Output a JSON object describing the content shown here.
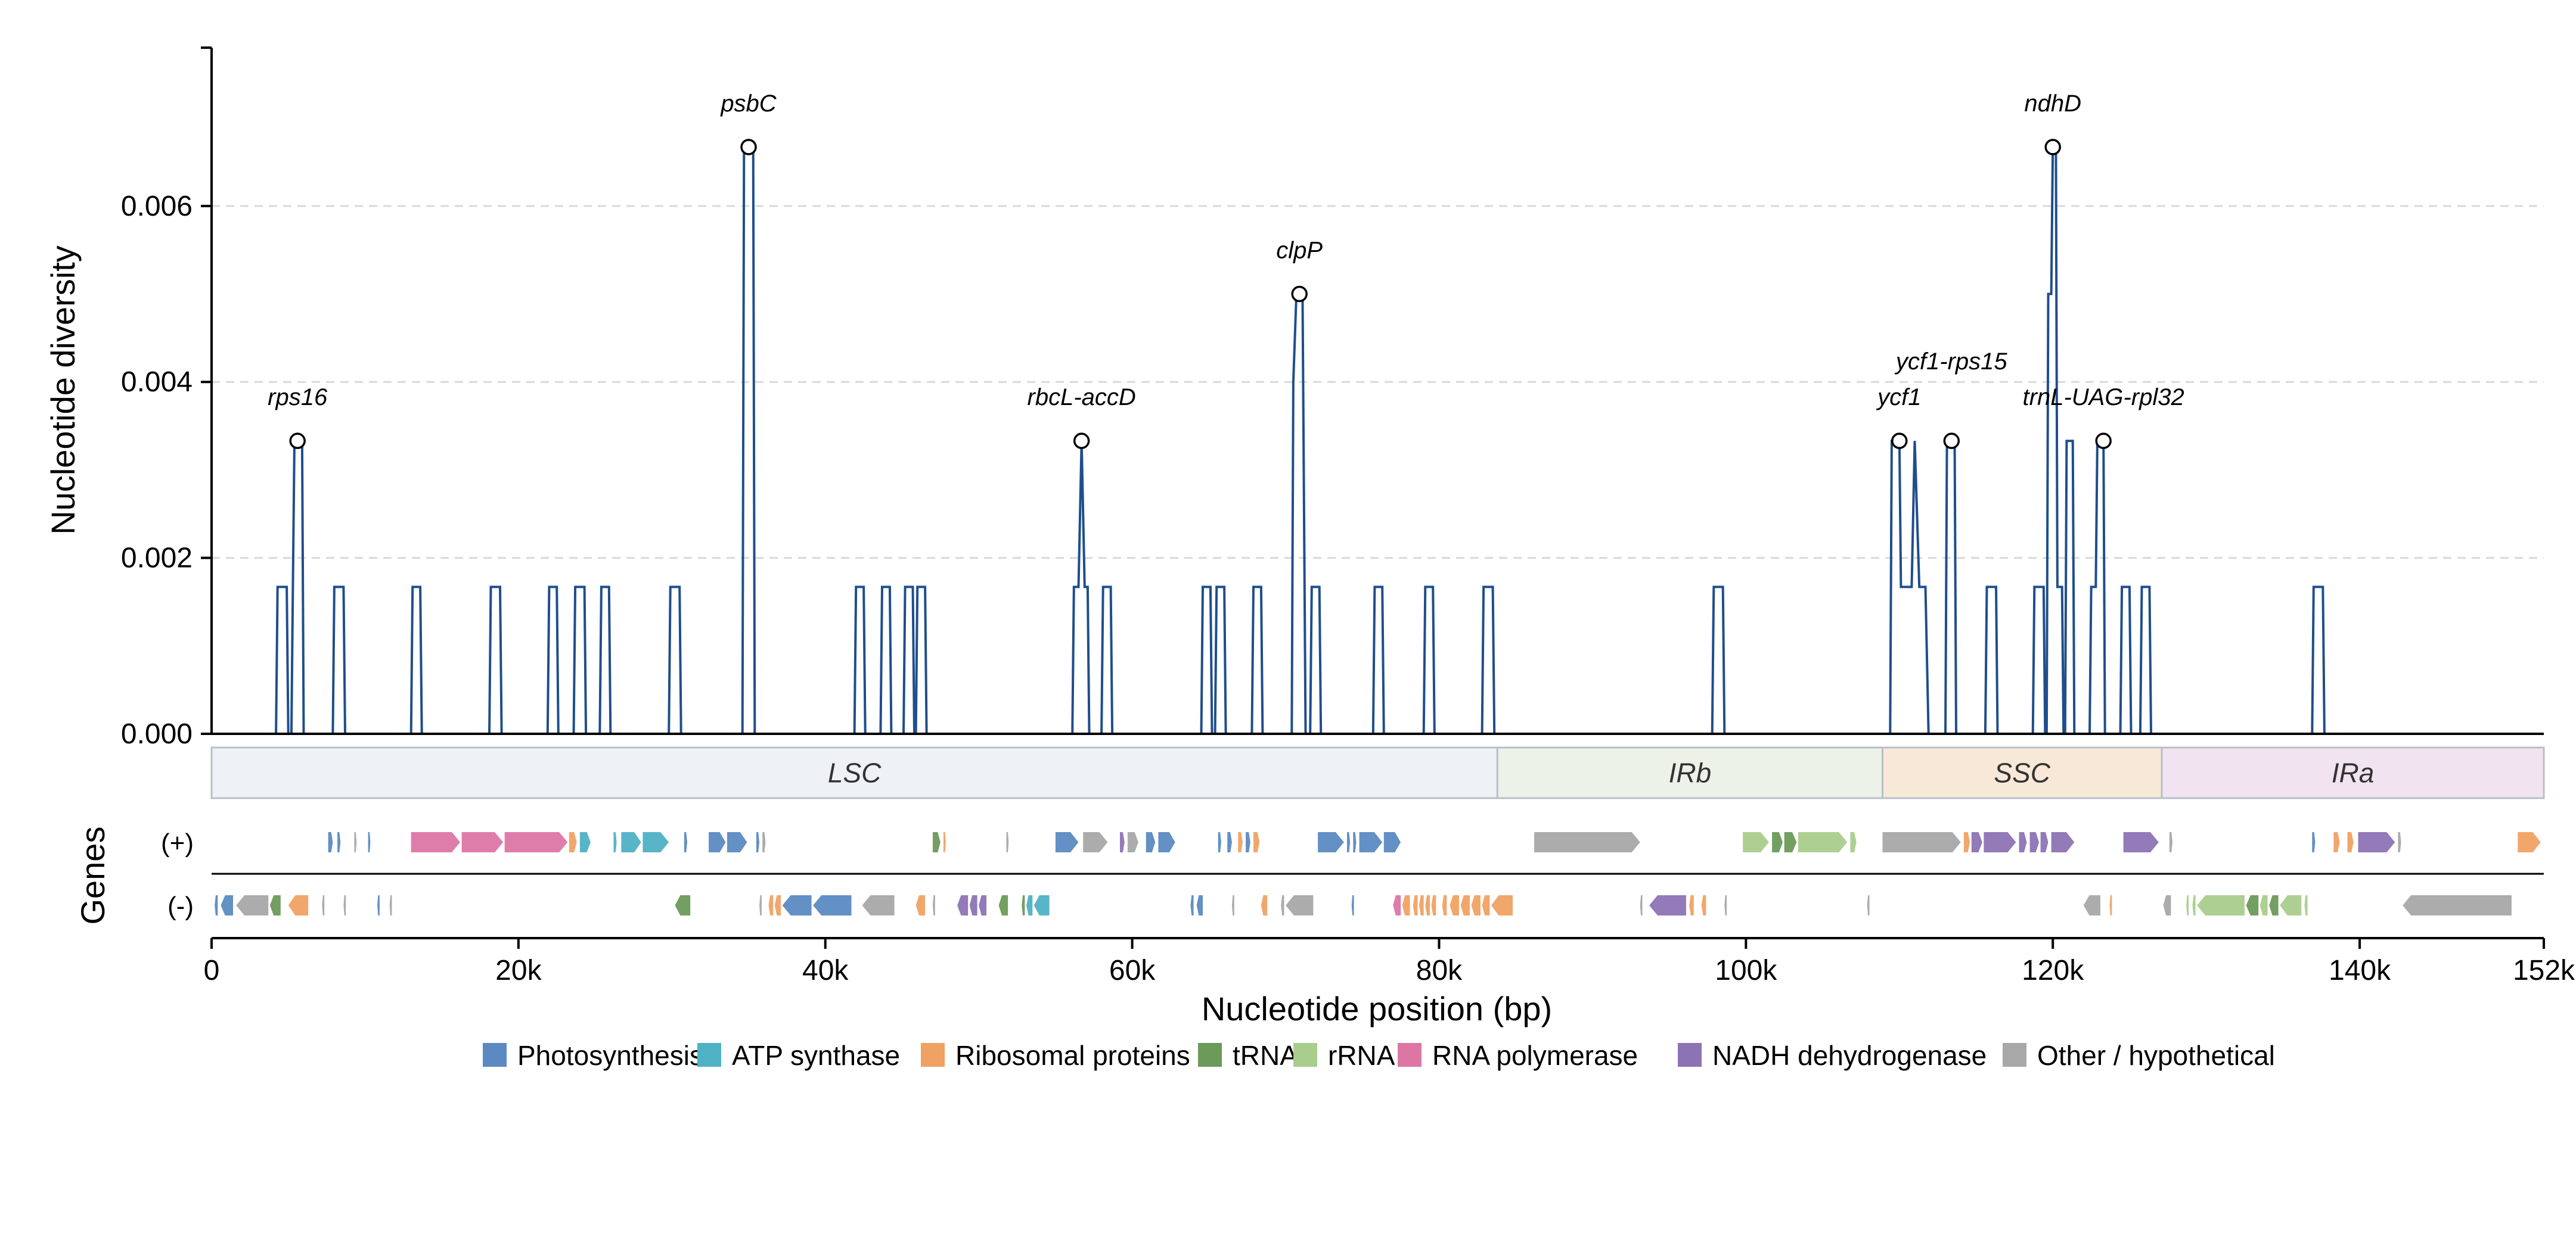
{
  "chart_data": {
    "type": "line",
    "ylabel": "Nucleotide diversity",
    "xlabel": "Nucleotide position (bp)",
    "genes_label": "Genes",
    "ylim": [
      0,
      0.0078
    ],
    "xlim": [
      0,
      152000
    ],
    "y_ticks": [
      0,
      0.002,
      0.004,
      0.006
    ],
    "y_tick_labels": [
      "0.000",
      "0.002",
      "0.004",
      "0.006"
    ],
    "x_ticks": [
      0,
      20000,
      40000,
      60000,
      80000,
      100000,
      120000,
      140000,
      152000
    ],
    "x_tick_labels": [
      "0",
      "20k",
      "40k",
      "60k",
      "80k",
      "100k",
      "120k",
      "140k",
      "152k"
    ],
    "grid": "horizontal dashed",
    "line_color": "#1f4e8c",
    "series_points": [
      [
        4200,
        0
      ],
      [
        4300,
        0.00167
      ],
      [
        4900,
        0.00167
      ],
      [
        5000,
        0
      ],
      [
        5200,
        0
      ],
      [
        5300,
        0.00167
      ],
      [
        5400,
        0.00333
      ],
      [
        5900,
        0.00333
      ],
      [
        6000,
        0
      ],
      [
        7900,
        0
      ],
      [
        8000,
        0.00167
      ],
      [
        8600,
        0.00167
      ],
      [
        8700,
        0
      ],
      [
        13000,
        0
      ],
      [
        13100,
        0.00167
      ],
      [
        13600,
        0.00167
      ],
      [
        13700,
        0
      ],
      [
        18100,
        0
      ],
      [
        18200,
        0.00167
      ],
      [
        18800,
        0.00167
      ],
      [
        18900,
        0
      ],
      [
        21900,
        0
      ],
      [
        22000,
        0.00167
      ],
      [
        22500,
        0.00167
      ],
      [
        22600,
        0
      ],
      [
        23600,
        0
      ],
      [
        23700,
        0.00167
      ],
      [
        24300,
        0.00167
      ],
      [
        24400,
        0
      ],
      [
        25300,
        0
      ],
      [
        25400,
        0.00167
      ],
      [
        25900,
        0.00167
      ],
      [
        26000,
        0
      ],
      [
        29800,
        0
      ],
      [
        29900,
        0.00167
      ],
      [
        30500,
        0.00167
      ],
      [
        30600,
        0
      ],
      [
        34600,
        0
      ],
      [
        34700,
        0.00667
      ],
      [
        35300,
        0.00667
      ],
      [
        35400,
        0
      ],
      [
        41900,
        0
      ],
      [
        42000,
        0.00167
      ],
      [
        42500,
        0.00167
      ],
      [
        42600,
        0
      ],
      [
        43600,
        0
      ],
      [
        43700,
        0.00167
      ],
      [
        44200,
        0.00167
      ],
      [
        44300,
        0
      ],
      [
        45100,
        0
      ],
      [
        45200,
        0.00167
      ],
      [
        45700,
        0.00167
      ],
      [
        45800,
        0
      ],
      [
        45900,
        0
      ],
      [
        46000,
        0.00167
      ],
      [
        46500,
        0.00167
      ],
      [
        46600,
        0
      ],
      [
        56100,
        0
      ],
      [
        56200,
        0.00167
      ],
      [
        56500,
        0.00167
      ],
      [
        56700,
        0.00333
      ],
      [
        56900,
        0.00167
      ],
      [
        57100,
        0.00167
      ],
      [
        57200,
        0
      ],
      [
        58000,
        0
      ],
      [
        58100,
        0.00167
      ],
      [
        58600,
        0.00167
      ],
      [
        58700,
        0
      ],
      [
        64500,
        0
      ],
      [
        64600,
        0.00167
      ],
      [
        65100,
        0.00167
      ],
      [
        65200,
        0
      ],
      [
        65400,
        0
      ],
      [
        65500,
        0.00167
      ],
      [
        66000,
        0.00167
      ],
      [
        66100,
        0
      ],
      [
        67800,
        0
      ],
      [
        67900,
        0.00167
      ],
      [
        68400,
        0.00167
      ],
      [
        68500,
        0
      ],
      [
        70400,
        0
      ],
      [
        70500,
        0.004
      ],
      [
        70700,
        0.005
      ],
      [
        71100,
        0.005
      ],
      [
        71300,
        0
      ],
      [
        71600,
        0
      ],
      [
        71700,
        0.00167
      ],
      [
        72200,
        0.00167
      ],
      [
        72300,
        0
      ],
      [
        75700,
        0
      ],
      [
        75800,
        0.00167
      ],
      [
        76300,
        0.00167
      ],
      [
        76400,
        0
      ],
      [
        79000,
        0
      ],
      [
        79100,
        0.00167
      ],
      [
        79600,
        0.00167
      ],
      [
        79700,
        0
      ],
      [
        82800,
        0
      ],
      [
        82900,
        0.00167
      ],
      [
        83500,
        0.00167
      ],
      [
        83600,
        0
      ],
      [
        97800,
        0
      ],
      [
        97900,
        0.00167
      ],
      [
        98500,
        0.00167
      ],
      [
        98600,
        0
      ],
      [
        109400,
        0
      ],
      [
        109500,
        0.00333
      ],
      [
        110000,
        0.00333
      ],
      [
        110100,
        0.00167
      ],
      [
        110800,
        0.00167
      ],
      [
        111000,
        0.00333
      ],
      [
        111300,
        0.00167
      ],
      [
        111700,
        0.00167
      ],
      [
        111900,
        0
      ],
      [
        113000,
        0
      ],
      [
        113100,
        0.00333
      ],
      [
        113600,
        0.00333
      ],
      [
        113700,
        0
      ],
      [
        115600,
        0
      ],
      [
        115700,
        0.00167
      ],
      [
        116300,
        0.00167
      ],
      [
        116400,
        0
      ],
      [
        118700,
        0
      ],
      [
        118800,
        0.00167
      ],
      [
        119400,
        0.00167
      ],
      [
        119500,
        0
      ],
      [
        119600,
        0
      ],
      [
        119700,
        0.005
      ],
      [
        119900,
        0.005
      ],
      [
        120000,
        0.00667
      ],
      [
        120200,
        0.00667
      ],
      [
        120300,
        0.00167
      ],
      [
        120600,
        0.00167
      ],
      [
        120700,
        0
      ],
      [
        120800,
        0
      ],
      [
        120900,
        0.00333
      ],
      [
        121300,
        0.00333
      ],
      [
        121400,
        0
      ],
      [
        122400,
        0
      ],
      [
        122500,
        0.00167
      ],
      [
        122800,
        0.00167
      ],
      [
        122900,
        0.00333
      ],
      [
        123300,
        0.00333
      ],
      [
        123400,
        0
      ],
      [
        124400,
        0
      ],
      [
        124500,
        0.00167
      ],
      [
        125000,
        0.00167
      ],
      [
        125100,
        0
      ],
      [
        125700,
        0
      ],
      [
        125800,
        0.00167
      ],
      [
        126300,
        0.00167
      ],
      [
        126400,
        0
      ],
      [
        136900,
        0
      ],
      [
        137000,
        0.00167
      ],
      [
        137600,
        0.00167
      ],
      [
        137700,
        0
      ]
    ],
    "peaks": [
      {
        "label": "rps16",
        "x": 5600,
        "y": 0.00333
      },
      {
        "label": "psbC",
        "x": 35000,
        "y": 0.00667
      },
      {
        "label": "rbcL-accD",
        "x": 56700,
        "y": 0.00333
      },
      {
        "label": "clpP",
        "x": 70900,
        "y": 0.005
      },
      {
        "label": "ycf1",
        "x": 110000,
        "y": 0.00333
      },
      {
        "label": "ycf1-rps15",
        "x": 113400,
        "y": 0.00333
      },
      {
        "label": "ndhD",
        "x": 120000,
        "y": 0.00667
      },
      {
        "label": "trnL-UAG-rpl32",
        "x": 123300,
        "y": 0.00333
      }
    ],
    "regions": [
      {
        "name": "LSC",
        "start": 0,
        "end": 83800,
        "color": "#eef2f6"
      },
      {
        "name": "IRb",
        "start": 83800,
        "end": 108900,
        "color": "#ecf2e8"
      },
      {
        "name": "SSC",
        "start": 108900,
        "end": 127100,
        "color": "#f8e8d8"
      },
      {
        "name": "IRa",
        "start": 127100,
        "end": 152000,
        "color": "#f1e4f0"
      }
    ],
    "strand_labels": {
      "plus": "(+)",
      "minus": "(-)"
    },
    "categories": [
      {
        "name": "Photosynthesis",
        "color": "#5b8ac2"
      },
      {
        "name": "ATP synthase",
        "color": "#4fb1c4"
      },
      {
        "name": "Ribosomal proteins",
        "color": "#f0a264"
      },
      {
        "name": "tRNA",
        "color": "#6b9a5a"
      },
      {
        "name": "rRNA",
        "color": "#a9cd8c"
      },
      {
        "name": "RNA polymerase",
        "color": "#dd76a5"
      },
      {
        "name": "NADH dehydrogenase",
        "color": "#8d73b4"
      },
      {
        "name": "Other / hypothetical",
        "color": "#a8a8a8"
      }
    ],
    "genes_plus": [
      {
        "s": 7600,
        "e": 7900,
        "c": 0
      },
      {
        "s": 8200,
        "e": 8400,
        "c": 0
      },
      {
        "s": 9300,
        "e": 9450,
        "c": 7
      },
      {
        "s": 10200,
        "e": 10350,
        "c": 0
      },
      {
        "s": 13000,
        "e": 16200,
        "c": 5
      },
      {
        "s": 16300,
        "e": 19000,
        "c": 5
      },
      {
        "s": 19100,
        "e": 23200,
        "c": 5
      },
      {
        "s": 23300,
        "e": 23800,
        "c": 2
      },
      {
        "s": 24000,
        "e": 24700,
        "c": 1
      },
      {
        "s": 26200,
        "e": 26400,
        "c": 1
      },
      {
        "s": 26700,
        "e": 28000,
        "c": 1
      },
      {
        "s": 28100,
        "e": 29800,
        "c": 1
      },
      {
        "s": 30800,
        "e": 31000,
        "c": 0
      },
      {
        "s": 32400,
        "e": 33500,
        "c": 0
      },
      {
        "s": 33600,
        "e": 34900,
        "c": 0
      },
      {
        "s": 35500,
        "e": 35700,
        "c": 0
      },
      {
        "s": 35900,
        "e": 36100,
        "c": 7
      },
      {
        "s": 47000,
        "e": 47500,
        "c": 3
      },
      {
        "s": 47700,
        "e": 47850,
        "c": 2
      },
      {
        "s": 51800,
        "e": 51950,
        "c": 7
      },
      {
        "s": 55000,
        "e": 56500,
        "c": 0
      },
      {
        "s": 56800,
        "e": 58400,
        "c": 7
      },
      {
        "s": 59200,
        "e": 59500,
        "c": 6
      },
      {
        "s": 59700,
        "e": 60400,
        "c": 7
      },
      {
        "s": 60900,
        "e": 61500,
        "c": 0
      },
      {
        "s": 61700,
        "e": 62800,
        "c": 0
      },
      {
        "s": 65600,
        "e": 65800,
        "c": 0
      },
      {
        "s": 66200,
        "e": 66500,
        "c": 0
      },
      {
        "s": 66900,
        "e": 67200,
        "c": 2
      },
      {
        "s": 67400,
        "e": 67700,
        "c": 0
      },
      {
        "s": 67900,
        "e": 68300,
        "c": 2
      },
      {
        "s": 72100,
        "e": 73800,
        "c": 0
      },
      {
        "s": 74000,
        "e": 74200,
        "c": 0
      },
      {
        "s": 74400,
        "e": 74600,
        "c": 0
      },
      {
        "s": 74800,
        "e": 76300,
        "c": 0
      },
      {
        "s": 76400,
        "e": 77500,
        "c": 0
      },
      {
        "s": 86200,
        "e": 93100,
        "c": 7
      },
      {
        "s": 99800,
        "e": 101500,
        "c": 4
      },
      {
        "s": 101700,
        "e": 102400,
        "c": 3
      },
      {
        "s": 102500,
        "e": 103300,
        "c": 3
      },
      {
        "s": 103400,
        "e": 106600,
        "c": 4
      },
      {
        "s": 106800,
        "e": 107200,
        "c": 4
      },
      {
        "s": 108900,
        "e": 114000,
        "c": 7
      },
      {
        "s": 114200,
        "e": 114600,
        "c": 2
      },
      {
        "s": 114700,
        "e": 115400,
        "c": 6
      },
      {
        "s": 115500,
        "e": 117600,
        "c": 6
      },
      {
        "s": 117800,
        "e": 118300,
        "c": 6
      },
      {
        "s": 118500,
        "e": 119100,
        "c": 6
      },
      {
        "s": 119200,
        "e": 119700,
        "c": 6
      },
      {
        "s": 119900,
        "e": 121400,
        "c": 6
      },
      {
        "s": 124600,
        "e": 126900,
        "c": 6
      },
      {
        "s": 127600,
        "e": 127800,
        "c": 7
      },
      {
        "s": 136900,
        "e": 137100,
        "c": 0
      },
      {
        "s": 138300,
        "e": 138700,
        "c": 2
      },
      {
        "s": 139200,
        "e": 139600,
        "c": 2
      },
      {
        "s": 139900,
        "e": 142300,
        "c": 6
      },
      {
        "s": 142500,
        "e": 142700,
        "c": 7
      },
      {
        "s": 150300,
        "e": 151800,
        "c": 2
      }
    ],
    "genes_minus": [
      {
        "s": 200,
        "e": 400,
        "c": 0
      },
      {
        "s": 600,
        "e": 1400,
        "c": 0
      },
      {
        "s": 1600,
        "e": 3700,
        "c": 7
      },
      {
        "s": 3800,
        "e": 4500,
        "c": 3
      },
      {
        "s": 5000,
        "e": 6300,
        "c": 2
      },
      {
        "s": 7200,
        "e": 7350,
        "c": 7
      },
      {
        "s": 8600,
        "e": 8750,
        "c": 7
      },
      {
        "s": 10800,
        "e": 10950,
        "c": 0
      },
      {
        "s": 11600,
        "e": 11750,
        "c": 7
      },
      {
        "s": 30200,
        "e": 31200,
        "c": 3
      },
      {
        "s": 35700,
        "e": 35850,
        "c": 7
      },
      {
        "s": 36300,
        "e": 36600,
        "c": 2
      },
      {
        "s": 36700,
        "e": 37100,
        "c": 2
      },
      {
        "s": 37200,
        "e": 39100,
        "c": 0
      },
      {
        "s": 39200,
        "e": 41700,
        "c": 0
      },
      {
        "s": 42400,
        "e": 44500,
        "c": 7
      },
      {
        "s": 45900,
        "e": 46500,
        "c": 2
      },
      {
        "s": 47000,
        "e": 47150,
        "c": 7
      },
      {
        "s": 48600,
        "e": 49300,
        "c": 6
      },
      {
        "s": 49400,
        "e": 49900,
        "c": 6
      },
      {
        "s": 50000,
        "e": 50500,
        "c": 6
      },
      {
        "s": 51300,
        "e": 51900,
        "c": 3
      },
      {
        "s": 52800,
        "e": 53000,
        "c": 3
      },
      {
        "s": 53100,
        "e": 53500,
        "c": 1
      },
      {
        "s": 53600,
        "e": 54600,
        "c": 1
      },
      {
        "s": 63800,
        "e": 64000,
        "c": 0
      },
      {
        "s": 64200,
        "e": 64600,
        "c": 0
      },
      {
        "s": 66500,
        "e": 66650,
        "c": 7
      },
      {
        "s": 68400,
        "e": 68800,
        "c": 2
      },
      {
        "s": 69700,
        "e": 69900,
        "c": 7
      },
      {
        "s": 70000,
        "e": 71800,
        "c": 7
      },
      {
        "s": 74300,
        "e": 74450,
        "c": 0
      },
      {
        "s": 77000,
        "e": 77500,
        "c": 5
      },
      {
        "s": 77600,
        "e": 78100,
        "c": 2
      },
      {
        "s": 78300,
        "e": 78600,
        "c": 2
      },
      {
        "s": 78700,
        "e": 79000,
        "c": 2
      },
      {
        "s": 79100,
        "e": 79400,
        "c": 2
      },
      {
        "s": 79500,
        "e": 79800,
        "c": 2
      },
      {
        "s": 80200,
        "e": 80500,
        "c": 2
      },
      {
        "s": 80700,
        "e": 81300,
        "c": 2
      },
      {
        "s": 81400,
        "e": 82000,
        "c": 2
      },
      {
        "s": 82100,
        "e": 82700,
        "c": 2
      },
      {
        "s": 82800,
        "e": 83300,
        "c": 2
      },
      {
        "s": 83400,
        "e": 84800,
        "c": 2
      },
      {
        "s": 93100,
        "e": 93250,
        "c": 7
      },
      {
        "s": 93700,
        "e": 96100,
        "c": 6
      },
      {
        "s": 96300,
        "e": 96600,
        "c": 2
      },
      {
        "s": 97100,
        "e": 97400,
        "c": 2
      },
      {
        "s": 98600,
        "e": 98750,
        "c": 7
      },
      {
        "s": 107900,
        "e": 108050,
        "c": 7
      },
      {
        "s": 122000,
        "e": 123100,
        "c": 7
      },
      {
        "s": 123700,
        "e": 123850,
        "c": 2
      },
      {
        "s": 127200,
        "e": 127700,
        "c": 7
      },
      {
        "s": 128700,
        "e": 128850,
        "c": 4
      },
      {
        "s": 129100,
        "e": 129300,
        "c": 4
      },
      {
        "s": 129400,
        "e": 132500,
        "c": 4
      },
      {
        "s": 132600,
        "e": 133400,
        "c": 3
      },
      {
        "s": 133500,
        "e": 134000,
        "c": 4
      },
      {
        "s": 134100,
        "e": 134700,
        "c": 3
      },
      {
        "s": 134800,
        "e": 136200,
        "c": 4
      },
      {
        "s": 136400,
        "e": 136600,
        "c": 4
      },
      {
        "s": 142800,
        "e": 149900,
        "c": 7
      }
    ]
  }
}
